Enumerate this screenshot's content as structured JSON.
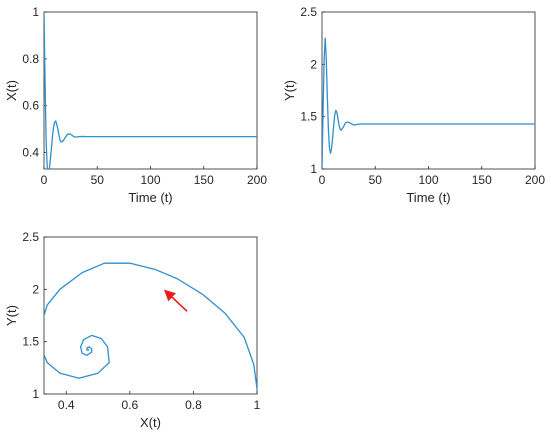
{
  "chart_data": [
    {
      "type": "line",
      "xlabel": "Time (t)",
      "ylabel": "X(t)",
      "xlim": [
        0,
        200
      ],
      "ylim": [
        0.33,
        1.0
      ],
      "xticks": [
        0,
        50,
        100,
        150,
        200
      ],
      "yticks": [
        0.4,
        0.6,
        0.8,
        1
      ],
      "grid": false,
      "series": [
        {
          "x": [
            0,
            1,
            2,
            3,
            4,
            5,
            6,
            7,
            8,
            9,
            10,
            11,
            12,
            13,
            14,
            15,
            16,
            18,
            20,
            22,
            24,
            26,
            28,
            30,
            33,
            36,
            40,
            50,
            75,
            100,
            150,
            200
          ],
          "y": [
            1.0,
            0.7,
            0.45,
            0.34,
            0.31,
            0.33,
            0.37,
            0.42,
            0.47,
            0.51,
            0.53,
            0.535,
            0.52,
            0.5,
            0.475,
            0.455,
            0.445,
            0.45,
            0.465,
            0.478,
            0.48,
            0.475,
            0.468,
            0.466,
            0.468,
            0.469,
            0.468,
            0.468,
            0.468,
            0.468,
            0.468,
            0.468
          ]
        }
      ]
    },
    {
      "type": "line",
      "xlabel": "Time (t)",
      "ylabel": "Y(t)",
      "xlim": [
        0,
        200
      ],
      "ylim": [
        1.0,
        2.5
      ],
      "xticks": [
        0,
        50,
        100,
        150,
        200
      ],
      "yticks": [
        1,
        1.5,
        2,
        2.5
      ],
      "grid": false,
      "series": [
        {
          "x": [
            0,
            1,
            2,
            3,
            4,
            5,
            6,
            7,
            8,
            9,
            10,
            11,
            12,
            13,
            14,
            15,
            16,
            17,
            18,
            20,
            22,
            24,
            26,
            28,
            30,
            33,
            36,
            40,
            50,
            75,
            100,
            150,
            200
          ],
          "y": [
            1.0,
            1.55,
            2.05,
            2.25,
            2.05,
            1.7,
            1.38,
            1.2,
            1.15,
            1.2,
            1.3,
            1.42,
            1.52,
            1.56,
            1.54,
            1.48,
            1.42,
            1.38,
            1.37,
            1.4,
            1.44,
            1.45,
            1.44,
            1.43,
            1.42,
            1.425,
            1.43,
            1.43,
            1.43,
            1.43,
            1.43,
            1.43,
            1.43
          ]
        }
      ]
    },
    {
      "type": "line",
      "xlabel": "X(t)",
      "ylabel": "Y(t)",
      "xlim": [
        0.33,
        1.0
      ],
      "ylim": [
        1.0,
        2.5
      ],
      "xticks": [
        0.4,
        0.6,
        0.8,
        1
      ],
      "yticks": [
        1,
        1.5,
        2,
        2.5
      ],
      "grid": false,
      "annotation": {
        "type": "arrow",
        "color": "#ee1c1c",
        "from": [
          0.78,
          1.79
        ],
        "to": [
          0.71,
          1.99
        ]
      },
      "series": [
        {
          "x": [
            1.0,
            0.99,
            0.96,
            0.9,
            0.83,
            0.75,
            0.68,
            0.6,
            0.52,
            0.45,
            0.38,
            0.34,
            0.32,
            0.32,
            0.34,
            0.38,
            0.44,
            0.5,
            0.535,
            0.53,
            0.51,
            0.48,
            0.455,
            0.445,
            0.45,
            0.465,
            0.48,
            0.48,
            0.472,
            0.465,
            0.465,
            0.47,
            0.468
          ],
          "y": [
            1.05,
            1.28,
            1.54,
            1.77,
            1.95,
            2.1,
            2.19,
            2.25,
            2.25,
            2.16,
            2.0,
            1.85,
            1.65,
            1.45,
            1.3,
            1.2,
            1.15,
            1.2,
            1.3,
            1.45,
            1.53,
            1.56,
            1.52,
            1.45,
            1.39,
            1.37,
            1.4,
            1.43,
            1.45,
            1.44,
            1.42,
            1.42,
            1.43
          ]
        }
      ]
    }
  ]
}
